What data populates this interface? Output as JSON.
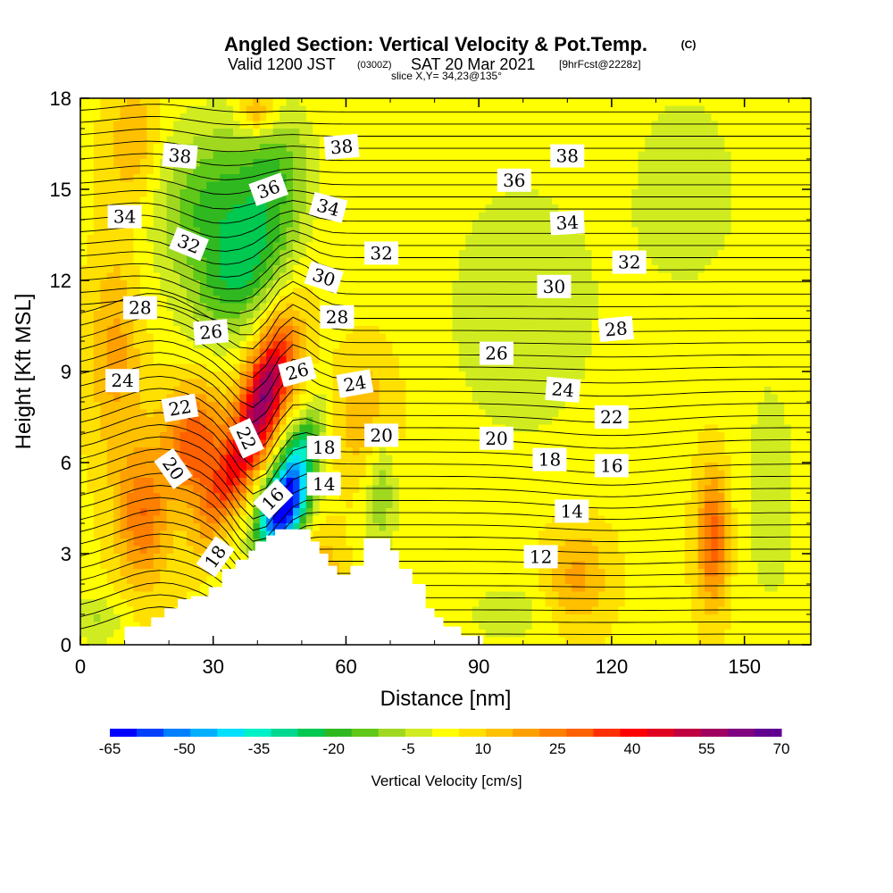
{
  "header": {
    "title": "Angled Section: Vertical Velocity & Pot.Temp.",
    "copyright": "(C)",
    "valid_prefix": "Valid 1200 JST",
    "valid_zulu": "(0300Z)",
    "valid_date": "SAT 20 Mar 2021",
    "forecast": "[9hrFcst@2228z]",
    "slice": "slice X,Y= 34,23@135°"
  },
  "chart_data": {
    "type": "heatmap",
    "xlabel": "Distance [nm]",
    "ylabel": "Height [Kft MSL]",
    "xlim": [
      0,
      165
    ],
    "ylim": [
      0,
      18
    ],
    "x_ticks": [
      0,
      30,
      60,
      90,
      120,
      150
    ],
    "y_ticks": [
      0,
      3,
      6,
      9,
      12,
      15,
      18
    ],
    "colorbar": {
      "label": "Vertical Velocity [cm/s]",
      "tick_labels": [
        "-65",
        "-50",
        "-35",
        "-20",
        "-5",
        "10",
        "25",
        "40",
        "55",
        "70"
      ],
      "colors": [
        "#0000ff",
        "#0040ff",
        "#0080ff",
        "#00b0ff",
        "#00e0ff",
        "#00f0c8",
        "#00d890",
        "#00c850",
        "#30b820",
        "#60c818",
        "#a0d820",
        "#d0ec20",
        "#ffff00",
        "#ffe000",
        "#ffc000",
        "#ffa000",
        "#ff8000",
        "#ff6000",
        "#ff3000",
        "#ff0000",
        "#e00020",
        "#c00040",
        "#a00060",
        "#800080",
        "#600090"
      ]
    },
    "terrain_outline": [
      [
        0,
        0
      ],
      [
        10,
        0
      ],
      [
        10,
        0.6
      ],
      [
        16,
        0.6
      ],
      [
        16,
        0.9
      ],
      [
        19,
        0.9
      ],
      [
        19,
        1.2
      ],
      [
        22,
        1.2
      ],
      [
        22,
        1.5
      ],
      [
        25,
        1.5
      ],
      [
        25,
        1.6
      ],
      [
        29,
        1.6
      ],
      [
        29,
        1.9
      ],
      [
        32,
        1.9
      ],
      [
        32,
        2.5
      ],
      [
        35,
        2.5
      ],
      [
        35,
        2.8
      ],
      [
        38,
        2.8
      ],
      [
        38,
        3.1
      ],
      [
        39.5,
        3.1
      ],
      [
        39.5,
        3.4
      ],
      [
        42,
        3.4
      ],
      [
        42,
        3.6
      ],
      [
        44,
        3.6
      ],
      [
        44,
        3.8
      ],
      [
        52,
        3.8
      ],
      [
        52,
        3.4
      ],
      [
        54,
        3.4
      ],
      [
        54,
        3.0
      ],
      [
        56,
        3.0
      ],
      [
        56,
        2.6
      ],
      [
        58,
        2.6
      ],
      [
        58,
        2.3
      ],
      [
        61,
        2.3
      ],
      [
        61,
        2.6
      ],
      [
        64,
        2.6
      ],
      [
        64,
        3.5
      ],
      [
        70,
        3.5
      ],
      [
        70,
        3.1
      ],
      [
        72,
        3.1
      ],
      [
        72,
        2.5
      ],
      [
        75,
        2.5
      ],
      [
        75,
        2.0
      ],
      [
        78,
        2.0
      ],
      [
        78,
        1.2
      ],
      [
        80,
        1.2
      ],
      [
        80,
        0.9
      ],
      [
        82,
        0.9
      ],
      [
        82,
        0.6
      ],
      [
        86,
        0.6
      ],
      [
        86,
        0.3
      ],
      [
        91,
        0.3
      ],
      [
        91,
        0
      ],
      [
        165,
        0
      ]
    ],
    "velocity_features": [
      {
        "x": 46,
        "y": 4.3,
        "value": -60,
        "sx": 3.5,
        "sy": 0.9,
        "tilt": -0.35
      },
      {
        "x": 48,
        "y": 5.8,
        "value": -40,
        "sx": 3.0,
        "sy": 1.2,
        "tilt": -0.4
      },
      {
        "x": 30,
        "y": 14.2,
        "value": -22,
        "sx": 9,
        "sy": 2.0,
        "tilt": 0
      },
      {
        "x": 37,
        "y": 12.3,
        "value": -18,
        "sx": 6,
        "sy": 1.6,
        "tilt": -0.4
      },
      {
        "x": 44,
        "y": 15.8,
        "value": -15,
        "sx": 6,
        "sy": 1.5,
        "tilt": 0
      },
      {
        "x": 42,
        "y": 8.7,
        "value": 42,
        "sx": 3.5,
        "sy": 1.4,
        "tilt": -0.3
      },
      {
        "x": 37,
        "y": 6.3,
        "value": 30,
        "sx": 3.5,
        "sy": 1.8,
        "tilt": -0.5
      },
      {
        "x": 26,
        "y": 6.6,
        "value": 28,
        "sx": 5,
        "sy": 1.4,
        "tilt": 0
      },
      {
        "x": 14,
        "y": 4.2,
        "value": 22,
        "sx": 4,
        "sy": 1.6,
        "tilt": 0
      },
      {
        "x": 143,
        "y": 3.5,
        "value": 26,
        "sx": 2.5,
        "sy": 1.6,
        "tilt": 0
      },
      {
        "x": 68,
        "y": 5.2,
        "value": -15,
        "sx": 2.5,
        "sy": 1.6,
        "tilt": 0
      },
      {
        "x": 65,
        "y": 7.5,
        "value": 12,
        "sx": 5,
        "sy": 1.5,
        "tilt": 0
      },
      {
        "x": 100,
        "y": 11,
        "value": -8,
        "sx": 14,
        "sy": 3.5,
        "tilt": 0
      },
      {
        "x": 137,
        "y": 15,
        "value": -8,
        "sx": 9,
        "sy": 2.5,
        "tilt": 0
      },
      {
        "x": 156,
        "y": 5,
        "value": -6,
        "sx": 6,
        "sy": 4,
        "tilt": 0
      },
      {
        "x": 97,
        "y": 1,
        "value": -7,
        "sx": 8,
        "sy": 0.8,
        "tilt": 0
      },
      {
        "x": 8,
        "y": 9.5,
        "value": 14,
        "sx": 4,
        "sy": 2.5,
        "tilt": 0
      },
      {
        "x": 112,
        "y": 2.2,
        "value": 14,
        "sx": 5,
        "sy": 1.2,
        "tilt": 0
      },
      {
        "x": 54,
        "y": 1.8,
        "value": 16,
        "sx": 3.5,
        "sy": 1.2,
        "tilt": 0
      },
      {
        "x": 12,
        "y": 16.5,
        "value": 12,
        "sx": 4,
        "sy": 1.5,
        "tilt": 0
      },
      {
        "x": 40,
        "y": 17.5,
        "value": 18,
        "sx": 3,
        "sy": 0.6,
        "tilt": 0
      },
      {
        "x": 4,
        "y": 0.8,
        "value": -10,
        "sx": 4,
        "sy": 0.6,
        "tilt": 0
      }
    ],
    "contour_labels": [
      {
        "text": "38",
        "x": 22.5,
        "y": 16.1,
        "angle": 5
      },
      {
        "text": "38",
        "x": 59,
        "y": 16.4,
        "angle": -5
      },
      {
        "text": "38",
        "x": 110,
        "y": 16.1,
        "angle": 0
      },
      {
        "text": "36",
        "x": 42.5,
        "y": 15.0,
        "angle": -20
      },
      {
        "text": "36",
        "x": 98,
        "y": 15.3,
        "angle": 0
      },
      {
        "text": "34",
        "x": 10,
        "y": 14.1,
        "angle": 0
      },
      {
        "text": "34",
        "x": 56,
        "y": 14.4,
        "angle": 15
      },
      {
        "text": "34",
        "x": 110,
        "y": 13.9,
        "angle": -3
      },
      {
        "text": "32",
        "x": 24.5,
        "y": 13.2,
        "angle": 22
      },
      {
        "text": "32",
        "x": 68,
        "y": 12.9,
        "angle": 0
      },
      {
        "text": "32",
        "x": 124,
        "y": 12.6,
        "angle": 0
      },
      {
        "text": "30",
        "x": 55,
        "y": 12.1,
        "angle": 18
      },
      {
        "text": "30",
        "x": 107,
        "y": 11.8,
        "angle": 0
      },
      {
        "text": "28",
        "x": 13.5,
        "y": 11.1,
        "angle": 0
      },
      {
        "text": "28",
        "x": 58,
        "y": 10.8,
        "angle": 0
      },
      {
        "text": "28",
        "x": 121,
        "y": 10.4,
        "angle": -5
      },
      {
        "text": "26",
        "x": 29.5,
        "y": 10.3,
        "angle": -5
      },
      {
        "text": "26",
        "x": 49,
        "y": 9.0,
        "angle": -15
      },
      {
        "text": "26",
        "x": 94,
        "y": 9.6,
        "angle": 0
      },
      {
        "text": "24",
        "x": 9.5,
        "y": 8.7,
        "angle": 0
      },
      {
        "text": "24",
        "x": 62,
        "y": 8.6,
        "angle": -10
      },
      {
        "text": "24",
        "x": 109,
        "y": 8.4,
        "angle": 5
      },
      {
        "text": "22",
        "x": 22.5,
        "y": 7.8,
        "angle": -10
      },
      {
        "text": "22",
        "x": 37.5,
        "y": 6.8,
        "angle": 65
      },
      {
        "text": "22",
        "x": 120,
        "y": 7.5,
        "angle": 0
      },
      {
        "text": "20",
        "x": 21,
        "y": 5.8,
        "angle": 55
      },
      {
        "text": "20",
        "x": 68,
        "y": 6.9,
        "angle": 0
      },
      {
        "text": "20",
        "x": 94,
        "y": 6.8,
        "angle": 0
      },
      {
        "text": "18",
        "x": 55,
        "y": 6.5,
        "angle": 0
      },
      {
        "text": "18",
        "x": 106,
        "y": 6.1,
        "angle": 0
      },
      {
        "text": "18",
        "x": 30.5,
        "y": 2.9,
        "angle": -55
      },
      {
        "text": "16",
        "x": 43.5,
        "y": 4.8,
        "angle": -45
      },
      {
        "text": "16",
        "x": 120,
        "y": 5.9,
        "angle": 0
      },
      {
        "text": "14",
        "x": 55,
        "y": 5.3,
        "angle": 0
      },
      {
        "text": "14",
        "x": 111,
        "y": 4.4,
        "angle": 0
      },
      {
        "text": "12",
        "x": 104,
        "y": 2.9,
        "angle": 0
      }
    ]
  }
}
